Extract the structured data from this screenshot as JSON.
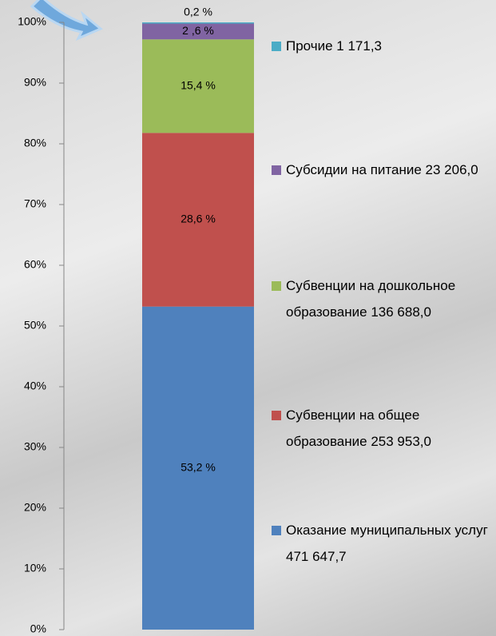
{
  "chart_data": {
    "type": "stacked_bar_100",
    "categories": [
      null
    ],
    "series": [
      {
        "name": "Оказание муниципальных услуг 471 647,7",
        "color": "#4f81bd",
        "values": [
          53.2
        ],
        "value_labels": [
          "53,2 %"
        ]
      },
      {
        "name": "Субвенции на общее образование 253 953,0",
        "color": "#c0504d",
        "values": [
          28.6
        ],
        "value_labels": [
          "28,6 %"
        ]
      },
      {
        "name": "Субвенции на дошкольное образование 136 688,0",
        "color": "#9bbb59",
        "values": [
          15.4
        ],
        "value_labels": [
          "15,4 %"
        ]
      },
      {
        "name": "Субсидии на питание 23 206,0",
        "color": "#8064a2",
        "values": [
          2.6
        ],
        "value_labels": [
          "2 ,6 %"
        ]
      },
      {
        "name": "Прочие 1 171,3",
        "color": "#4bacc6",
        "values": [
          0.2
        ],
        "value_labels": [
          "0,2 %"
        ]
      }
    ],
    "ylim": [
      0,
      100
    ],
    "yticks": [
      {
        "value": 0,
        "label": "0%"
      },
      {
        "value": 10,
        "label": "10%"
      },
      {
        "value": 20,
        "label": "20%"
      },
      {
        "value": 30,
        "label": "30%"
      },
      {
        "value": 40,
        "label": "40%"
      },
      {
        "value": 50,
        "label": "50%"
      },
      {
        "value": 60,
        "label": "60%"
      },
      {
        "value": 70,
        "label": "70%"
      },
      {
        "value": 80,
        "label": "80%"
      },
      {
        "value": 90,
        "label": "90%"
      },
      {
        "value": 100,
        "label": "100%"
      }
    ],
    "legend": "right"
  }
}
